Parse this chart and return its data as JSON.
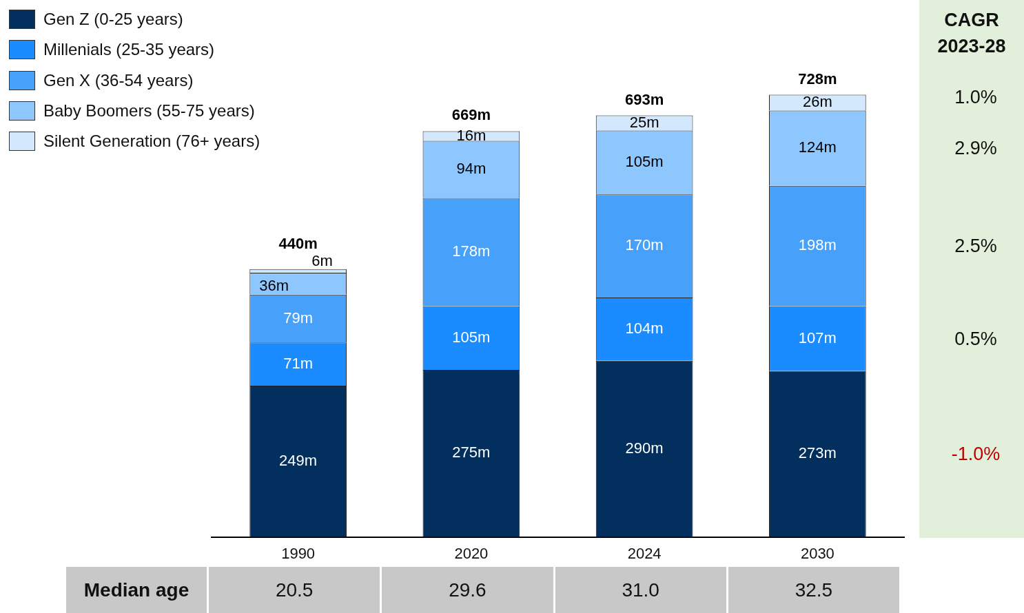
{
  "chart_data": {
    "type": "bar",
    "stacked": true,
    "legend": "top left",
    "categories": [
      "1990",
      "2020",
      "2024",
      "2030"
    ],
    "series": [
      {
        "name": "Gen Z (0-25 years)",
        "color": "#022f5d",
        "values": [
          249,
          275,
          290,
          273
        ],
        "value_labels": [
          "249m",
          "275m",
          "290m",
          "273m"
        ]
      },
      {
        "name": "Millenials (25-35 years)",
        "color": "#1a8cff",
        "values": [
          71,
          105,
          104,
          107
        ],
        "value_labels": [
          "71m",
          "105m",
          "104m",
          "107m"
        ]
      },
      {
        "name": "Gen X (36-54 years)",
        "color": "#47a1fa",
        "values": [
          79,
          178,
          170,
          198
        ],
        "value_labels": [
          "79m",
          "178m",
          "170m",
          "198m"
        ]
      },
      {
        "name": "Baby Boomers (55-75 years)",
        "color": "#8ec6fe",
        "values": [
          36,
          94,
          105,
          124
        ],
        "value_labels": [
          "36m",
          "94m",
          "105m",
          "124m"
        ]
      },
      {
        "name": "Silent Generation (76+ years)",
        "color": "#d3e7fd",
        "values": [
          6,
          16,
          25,
          26
        ],
        "value_labels": [
          "6m",
          "16m",
          "25m",
          "26m"
        ]
      }
    ],
    "totals": [
      "440m",
      "669m",
      "693m",
      "728m"
    ],
    "annotations": [
      "CAGR 2023-28",
      "1.0%",
      "2.9%",
      "2.5%",
      "0.5%",
      "-1.0%",
      "Median age",
      "20.5",
      "29.6",
      "31.0",
      "32.5"
    ]
  }
}
